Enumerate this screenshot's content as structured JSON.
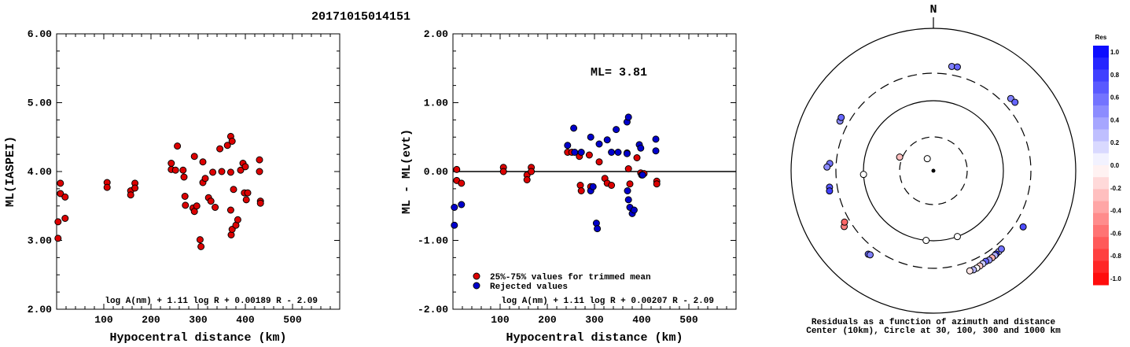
{
  "title": "20171015014151",
  "colors": {
    "red": "#dd0000",
    "blue": "#0000cc"
  },
  "chart_data": [
    {
      "type": "scatter",
      "xlabel": "Hypocentral distance (km)",
      "ylabel": "ML(IASPEI)",
      "xlim": [
        0,
        600
      ],
      "ylim": [
        2.0,
        6.0
      ],
      "xticks": [
        100,
        200,
        300,
        400,
        500
      ],
      "yticks": [
        2.0,
        3.0,
        4.0,
        5.0,
        6.0
      ],
      "ytick_labels": [
        "2.00",
        "3.00",
        "4.00",
        "5.00",
        "6.00"
      ],
      "formula": "log A(nm) + 1.11 log R + 0.00189 R - 2.09",
      "series": [
        {
          "color": "red",
          "points": [
            [
              3,
              3.27
            ],
            [
              3,
              3.03
            ],
            [
              8,
              3.83
            ],
            [
              8,
              3.68
            ],
            [
              18,
              3.63
            ],
            [
              18,
              3.32
            ],
            [
              107,
              3.84
            ],
            [
              107,
              3.77
            ],
            [
              157,
              3.72
            ],
            [
              157,
              3.66
            ],
            [
              166,
              3.83
            ],
            [
              166,
              3.76
            ],
            [
              243,
              4.12
            ],
            [
              243,
              4.03
            ],
            [
              252,
              4.02
            ],
            [
              256,
              4.37
            ],
            [
              268,
              4.02
            ],
            [
              270,
              3.92
            ],
            [
              272,
              3.64
            ],
            [
              273,
              3.51
            ],
            [
              289,
              3.47
            ],
            [
              292,
              4.22
            ],
            [
              292,
              3.42
            ],
            [
              297,
              3.5
            ],
            [
              304,
              3.01
            ],
            [
              306,
              2.91
            ],
            [
              310,
              4.14
            ],
            [
              310,
              3.84
            ],
            [
              315,
              3.9
            ],
            [
              322,
              3.62
            ],
            [
              327,
              3.57
            ],
            [
              331,
              3.99
            ],
            [
              336,
              3.48
            ],
            [
              346,
              4.33
            ],
            [
              350,
              4.0
            ],
            [
              362,
              4.38
            ],
            [
              369,
              4.51
            ],
            [
              369,
              3.99
            ],
            [
              369,
              3.44
            ],
            [
              370,
              3.08
            ],
            [
              372,
              4.44
            ],
            [
              372,
              3.16
            ],
            [
              375,
              3.74
            ],
            [
              380,
              3.22
            ],
            [
              384,
              3.3
            ],
            [
              390,
              4.02
            ],
            [
              395,
              4.12
            ],
            [
              398,
              3.69
            ],
            [
              400,
              4.07
            ],
            [
              402,
              3.59
            ],
            [
              405,
              3.69
            ],
            [
              430,
              4.17
            ],
            [
              430,
              4.0
            ],
            [
              432,
              3.57
            ],
            [
              432,
              3.54
            ]
          ]
        }
      ]
    },
    {
      "type": "scatter",
      "xlabel": "Hypocentral distance (km)",
      "ylabel": "ML - ML(evt)",
      "xlim": [
        0,
        600
      ],
      "ylim": [
        -2.0,
        2.0
      ],
      "xticks": [
        100,
        200,
        300,
        400,
        500
      ],
      "yticks": [
        -2.0,
        -1.0,
        0.0,
        1.0,
        2.0
      ],
      "ytick_labels": [
        "-2.00",
        "-1.00",
        "0.00",
        "1.00",
        "2.00"
      ],
      "annotation": "ML= 3.81",
      "formula": "log A(nm) + 1.11 log R + 0.00207 R - 2.09",
      "legend": [
        "25%-75% values for trimmed mean",
        "Rejected values"
      ],
      "series": [
        {
          "name": "25%-75% values for trimmed mean",
          "color": "red",
          "points": [
            [
              8,
              0.03
            ],
            [
              8,
              -0.13
            ],
            [
              18,
              -0.17
            ],
            [
              107,
              0.06
            ],
            [
              107,
              0.0
            ],
            [
              157,
              -0.05
            ],
            [
              157,
              -0.12
            ],
            [
              166,
              0.06
            ],
            [
              166,
              0.0
            ],
            [
              243,
              0.28
            ],
            [
              252,
              0.28
            ],
            [
              268,
              0.22
            ],
            [
              270,
              -0.2
            ],
            [
              272,
              -0.28
            ],
            [
              289,
              0.24
            ],
            [
              292,
              -0.22
            ],
            [
              310,
              0.14
            ],
            [
              322,
              -0.1
            ],
            [
              327,
              -0.17
            ],
            [
              336,
              -0.2
            ],
            [
              369,
              0.27
            ],
            [
              372,
              0.04
            ],
            [
              375,
              -0.18
            ],
            [
              390,
              0.2
            ],
            [
              398,
              -0.02
            ],
            [
              405,
              -0.03
            ],
            [
              432,
              -0.14
            ],
            [
              432,
              -0.18
            ]
          ]
        },
        {
          "name": "Rejected values",
          "color": "blue",
          "points": [
            [
              3,
              -0.52
            ],
            [
              3,
              -0.78
            ],
            [
              18,
              -0.48
            ],
            [
              243,
              0.38
            ],
            [
              256,
              0.63
            ],
            [
              258,
              0.28
            ],
            [
              272,
              0.28
            ],
            [
              292,
              0.5
            ],
            [
              292,
              -0.28
            ],
            [
              297,
              -0.22
            ],
            [
              304,
              -0.75
            ],
            [
              306,
              -0.83
            ],
            [
              310,
              0.4
            ],
            [
              327,
              0.46
            ],
            [
              336,
              0.28
            ],
            [
              346,
              0.61
            ],
            [
              350,
              0.28
            ],
            [
              369,
              0.72
            ],
            [
              369,
              0.26
            ],
            [
              370,
              -0.28
            ],
            [
              372,
              0.79
            ],
            [
              372,
              -0.41
            ],
            [
              375,
              -0.52
            ],
            [
              380,
              -0.61
            ],
            [
              384,
              -0.56
            ],
            [
              395,
              0.39
            ],
            [
              398,
              0.34
            ],
            [
              400,
              -0.05
            ],
            [
              402,
              -0.05
            ],
            [
              430,
              0.47
            ],
            [
              430,
              0.3
            ]
          ]
        }
      ]
    },
    {
      "type": "scatter",
      "subtype": "polar",
      "north_label": "N",
      "caption_lines": [
        "Residuals as a function of azimuth and distance",
        "Center (10km), Circle at 30, 100, 300 and 1000 km"
      ],
      "colorbar_title": "Res",
      "colorbar_ticks": [
        "1.0",
        "0.8",
        "0.6",
        "0.4",
        "0.2",
        "0.0",
        "-0.2",
        "-0.4",
        "-0.6",
        "-0.8",
        "-1.0"
      ],
      "rings_km": [
        30,
        100,
        300,
        1000
      ],
      "stations": [
        {
          "az": 333,
          "dist": 18,
          "res": 0.0
        },
        {
          "az": 292,
          "dist": 35,
          "res": -0.25
        },
        {
          "az": 10,
          "dist": 430,
          "res": 0.5
        },
        {
          "az": 13,
          "dist": 440,
          "res": 0.6
        },
        {
          "az": 47,
          "dist": 430,
          "res": 0.5
        },
        {
          "az": 50,
          "dist": 440,
          "res": 0.6
        },
        {
          "az": 298,
          "dist": 430,
          "res": 0.45
        },
        {
          "az": 300,
          "dist": 440,
          "res": 0.6
        },
        {
          "az": 274,
          "dist": 400,
          "res": 0.55
        },
        {
          "az": 272,
          "dist": 440,
          "res": 0.45
        },
        {
          "az": 261,
          "dist": 420,
          "res": 0.65
        },
        {
          "az": 259,
          "dist": 430,
          "res": 0.75
        },
        {
          "az": 267,
          "dist": 100,
          "res": 0.0
        },
        {
          "az": 238,
          "dist": 420,
          "res": -0.5
        },
        {
          "az": 240,
          "dist": 380,
          "res": -0.6
        },
        {
          "az": 218,
          "dist": 430,
          "res": 0.6
        },
        {
          "az": 217,
          "dist": 420,
          "res": 0.5
        },
        {
          "az": 186,
          "dist": 100,
          "res": 0.0
        },
        {
          "az": 160,
          "dist": 100,
          "res": 0.0
        },
        {
          "az": 122,
          "dist": 430,
          "res": 0.7
        },
        {
          "az": 141,
          "dist": 400,
          "res": 0.2
        },
        {
          "az": 143,
          "dist": 405,
          "res": 0.8
        },
        {
          "az": 144,
          "dist": 410,
          "res": 0.3
        },
        {
          "az": 146,
          "dist": 415,
          "res": -0.3
        },
        {
          "az": 148,
          "dist": 420,
          "res": 0.4
        },
        {
          "az": 150,
          "dist": 410,
          "res": 0.6
        },
        {
          "az": 152,
          "dist": 420,
          "res": 0.2
        },
        {
          "az": 154,
          "dist": 430,
          "res": -0.2
        },
        {
          "az": 156,
          "dist": 440,
          "res": 0.0
        },
        {
          "az": 158,
          "dist": 445,
          "res": 0.3
        },
        {
          "az": 160,
          "dist": 440,
          "res": -0.1
        },
        {
          "az": 139,
          "dist": 395,
          "res": 0.55
        }
      ]
    }
  ]
}
